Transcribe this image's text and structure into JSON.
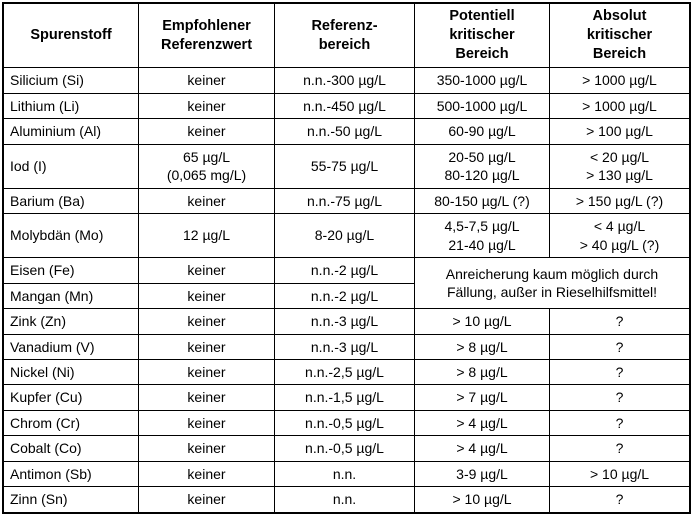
{
  "page": {
    "background_color": "#ffffff",
    "text_color": "#000000",
    "border_color": "#000000"
  },
  "table": {
    "columns": [
      {
        "id": "spurenstoff",
        "lines": [
          "Spurenstoff"
        ],
        "width": 126
      },
      {
        "id": "empfohlener-referenzwert",
        "lines": [
          "Empfohlener",
          "Referenzwert"
        ],
        "width": 127
      },
      {
        "id": "referenzbereich",
        "lines": [
          "Referenz-",
          "bereich"
        ],
        "width": 131
      },
      {
        "id": "potentiell-kritischer-bereich",
        "lines": [
          "Potentiell",
          "kritischer",
          "Bereich"
        ],
        "width": 126
      },
      {
        "id": "absolut-kritischer-bereich",
        "lines": [
          "Absolut",
          "kritischer",
          "Bereich"
        ],
        "width": 131
      }
    ],
    "rows": [
      {
        "element": "Silicium (Si)",
        "cells": [
          {
            "lines": [
              "Silicium (Si)"
            ]
          },
          {
            "lines": [
              "keiner"
            ]
          },
          {
            "lines": [
              "n.n.-300 µg/L"
            ]
          },
          {
            "lines": [
              "350-1000 µg/L"
            ]
          },
          {
            "lines": [
              "> 1000 µg/L"
            ]
          }
        ]
      },
      {
        "element": "Lithium (Li)",
        "cells": [
          {
            "lines": [
              "Lithium (Li)"
            ]
          },
          {
            "lines": [
              "keiner"
            ]
          },
          {
            "lines": [
              "n.n.-450 µg/L"
            ]
          },
          {
            "lines": [
              "500-1000 µg/L"
            ]
          },
          {
            "lines": [
              "> 1000 µg/L"
            ]
          }
        ]
      },
      {
        "element": "Aluminium (Al)",
        "cells": [
          {
            "lines": [
              "Aluminium (Al)"
            ]
          },
          {
            "lines": [
              "keiner"
            ]
          },
          {
            "lines": [
              "n.n.-50 µg/L"
            ]
          },
          {
            "lines": [
              "60-90 µg/L"
            ]
          },
          {
            "lines": [
              "> 100 µg/L"
            ]
          }
        ]
      },
      {
        "element": "Iod (I)",
        "cells": [
          {
            "lines": [
              "Iod (I)"
            ]
          },
          {
            "lines": [
              "65 µg/L",
              "(0,065 mg/L)"
            ]
          },
          {
            "lines": [
              "55-75 µg/L"
            ]
          },
          {
            "lines": [
              "20-50 µg/L",
              "80-120 µg/L"
            ]
          },
          {
            "lines": [
              "< 20 µg/L",
              "> 130 µg/L"
            ]
          }
        ]
      },
      {
        "element": "Barium (Ba)",
        "cells": [
          {
            "lines": [
              "Barium (Ba)"
            ]
          },
          {
            "lines": [
              "keiner"
            ]
          },
          {
            "lines": [
              "n.n.-75 µg/L"
            ]
          },
          {
            "lines": [
              "80-150 µg/L (?)"
            ]
          },
          {
            "lines": [
              "> 150 µg/L (?)"
            ]
          }
        ]
      },
      {
        "element": "Molybdän (Mo)",
        "cells": [
          {
            "lines": [
              "Molybdän (Mo)"
            ]
          },
          {
            "lines": [
              "12 µg/L"
            ]
          },
          {
            "lines": [
              "8-20 µg/L"
            ]
          },
          {
            "lines": [
              "4,5-7,5 µg/L",
              "21-40 µg/L"
            ]
          },
          {
            "lines": [
              "< 4 µg/L",
              "> 40 µg/L (?)"
            ]
          }
        ]
      },
      {
        "element": "Eisen (Fe)",
        "cells": [
          {
            "lines": [
              "Eisen (Fe)"
            ]
          },
          {
            "lines": [
              "keiner"
            ]
          },
          {
            "lines": [
              "n.n.-2 µg/L"
            ]
          },
          {
            "lines": [
              "Anreicherung kaum möglich durch",
              "Fällung, außer in Rieselhilfsmittel!"
            ],
            "colspan": 2,
            "rowspan": 2,
            "note": true
          }
        ]
      },
      {
        "element": "Mangan (Mn)",
        "cells": [
          {
            "lines": [
              "Mangan (Mn)"
            ]
          },
          {
            "lines": [
              "keiner"
            ]
          },
          {
            "lines": [
              "n.n.-2 µg/L"
            ]
          }
        ]
      },
      {
        "element": "Zink (Zn)",
        "cells": [
          {
            "lines": [
              "Zink (Zn)"
            ]
          },
          {
            "lines": [
              "keiner"
            ]
          },
          {
            "lines": [
              "n.n.-3 µg/L"
            ]
          },
          {
            "lines": [
              "> 10 µg/L"
            ]
          },
          {
            "lines": [
              "?"
            ]
          }
        ]
      },
      {
        "element": "Vanadium (V)",
        "cells": [
          {
            "lines": [
              "Vanadium (V)"
            ]
          },
          {
            "lines": [
              "keiner"
            ]
          },
          {
            "lines": [
              "n.n.-3 µg/L"
            ]
          },
          {
            "lines": [
              "> 8 µg/L"
            ]
          },
          {
            "lines": [
              "?"
            ]
          }
        ]
      },
      {
        "element": "Nickel (Ni)",
        "cells": [
          {
            "lines": [
              "Nickel (Ni)"
            ]
          },
          {
            "lines": [
              "keiner"
            ]
          },
          {
            "lines": [
              "n.n.-2,5 µg/L"
            ]
          },
          {
            "lines": [
              "> 8 µg/L"
            ]
          },
          {
            "lines": [
              "?"
            ]
          }
        ]
      },
      {
        "element": "Kupfer (Cu)",
        "cells": [
          {
            "lines": [
              "Kupfer (Cu)"
            ]
          },
          {
            "lines": [
              "keiner"
            ]
          },
          {
            "lines": [
              "n.n.-1,5 µg/L"
            ]
          },
          {
            "lines": [
              "> 7 µg/L"
            ]
          },
          {
            "lines": [
              "?"
            ]
          }
        ]
      },
      {
        "element": "Chrom (Cr)",
        "cells": [
          {
            "lines": [
              "Chrom (Cr)"
            ]
          },
          {
            "lines": [
              "keiner"
            ]
          },
          {
            "lines": [
              "n.n.-0,5 µg/L"
            ]
          },
          {
            "lines": [
              "> 4 µg/L"
            ]
          },
          {
            "lines": [
              "?"
            ]
          }
        ]
      },
      {
        "element": "Cobalt (Co)",
        "cells": [
          {
            "lines": [
              "Cobalt (Co)"
            ]
          },
          {
            "lines": [
              "keiner"
            ]
          },
          {
            "lines": [
              "n.n.-0,5 µg/L"
            ]
          },
          {
            "lines": [
              "> 4 µg/L"
            ]
          },
          {
            "lines": [
              "?"
            ]
          }
        ]
      },
      {
        "element": "Antimon (Sb)",
        "cells": [
          {
            "lines": [
              "Antimon (Sb)"
            ]
          },
          {
            "lines": [
              "keiner"
            ]
          },
          {
            "lines": [
              "n.n."
            ]
          },
          {
            "lines": [
              "3-9 µg/L"
            ]
          },
          {
            "lines": [
              "> 10 µg/L"
            ]
          }
        ]
      },
      {
        "element": "Zinn (Sn)",
        "cells": [
          {
            "lines": [
              "Zinn (Sn)"
            ]
          },
          {
            "lines": [
              "keiner"
            ]
          },
          {
            "lines": [
              "n.n."
            ]
          },
          {
            "lines": [
              "> 10 µg/L"
            ]
          },
          {
            "lines": [
              "?"
            ]
          }
        ]
      }
    ]
  }
}
